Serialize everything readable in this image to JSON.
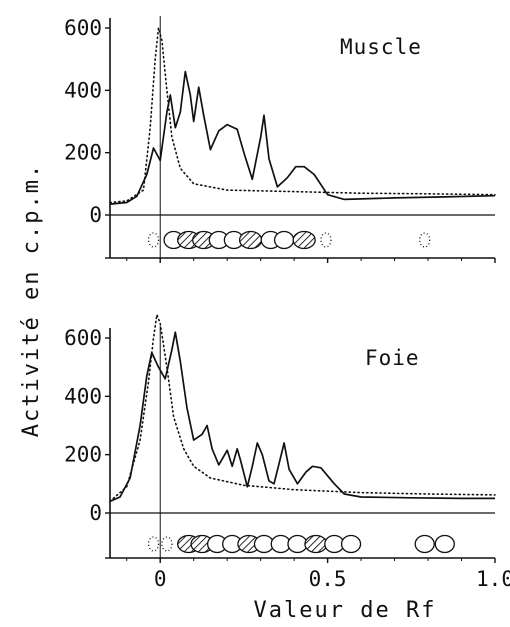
{
  "chart_data": [
    {
      "type": "line",
      "title": "Muscle",
      "ylabel": "Activité en c.p.m.",
      "xlabel": "Valeur de Rf",
      "xlim": [
        -0.15,
        1.0
      ],
      "ylim": [
        0,
        600
      ],
      "x_ticks": [
        0,
        0.5,
        1.0
      ],
      "x_tick_labels": [
        "0",
        "0.5",
        "1.0"
      ],
      "y_ticks": [
        0,
        200,
        400,
        600
      ],
      "y_tick_labels": [
        "0",
        "200",
        "400",
        "600"
      ],
      "series": [
        {
          "style": "solid",
          "points": [
            [
              -0.15,
              35
            ],
            [
              -0.1,
              40
            ],
            [
              -0.07,
              60
            ],
            [
              -0.04,
              130
            ],
            [
              -0.02,
              215
            ],
            [
              0.0,
              175
            ],
            [
              0.02,
              330
            ],
            [
              0.03,
              385
            ],
            [
              0.045,
              280
            ],
            [
              0.06,
              330
            ],
            [
              0.075,
              460
            ],
            [
              0.09,
              385
            ],
            [
              0.1,
              300
            ],
            [
              0.115,
              410
            ],
            [
              0.13,
              320
            ],
            [
              0.15,
              210
            ],
            [
              0.175,
              270
            ],
            [
              0.2,
              290
            ],
            [
              0.23,
              275
            ],
            [
              0.25,
              200
            ],
            [
              0.275,
              115
            ],
            [
              0.3,
              250
            ],
            [
              0.31,
              320
            ],
            [
              0.325,
              180
            ],
            [
              0.35,
              90
            ],
            [
              0.38,
              120
            ],
            [
              0.405,
              155
            ],
            [
              0.43,
              155
            ],
            [
              0.46,
              130
            ],
            [
              0.5,
              65
            ],
            [
              0.55,
              50
            ],
            [
              0.7,
              55
            ],
            [
              0.85,
              58
            ],
            [
              1.0,
              62
            ]
          ]
        },
        {
          "style": "dotted",
          "points": [
            [
              -0.15,
              40
            ],
            [
              -0.1,
              45
            ],
            [
              -0.05,
              80
            ],
            [
              -0.03,
              280
            ],
            [
              -0.015,
              500
            ],
            [
              -0.005,
              600
            ],
            [
              0.005,
              560
            ],
            [
              0.02,
              400
            ],
            [
              0.035,
              250
            ],
            [
              0.06,
              150
            ],
            [
              0.1,
              100
            ],
            [
              0.2,
              80
            ],
            [
              0.4,
              75
            ],
            [
              0.6,
              70
            ],
            [
              0.8,
              68
            ],
            [
              1.0,
              65
            ]
          ]
        }
      ],
      "spots": [
        {
          "rf": -0.02,
          "fill": "dotted"
        },
        {
          "rf": 0.04,
          "fill": "open"
        },
        {
          "rf": 0.085,
          "fill": "hatched"
        },
        {
          "rf": 0.13,
          "fill": "hatched"
        },
        {
          "rf": 0.175,
          "fill": "open"
        },
        {
          "rf": 0.22,
          "fill": "open"
        },
        {
          "rf": 0.27,
          "fill": "hatched"
        },
        {
          "rf": 0.33,
          "fill": "open"
        },
        {
          "rf": 0.37,
          "fill": "open"
        },
        {
          "rf": 0.43,
          "fill": "hatched"
        },
        {
          "rf": 0.495,
          "fill": "dotted"
        },
        {
          "rf": 0.79,
          "fill": "dotted"
        }
      ]
    },
    {
      "type": "line",
      "title": "Foie",
      "xlim": [
        -0.15,
        1.0
      ],
      "ylim": [
        0,
        600
      ],
      "x_ticks": [
        0,
        0.5,
        1.0
      ],
      "x_tick_labels": [
        "0",
        "0.5",
        "1.0"
      ],
      "y_ticks": [
        0,
        200,
        400,
        600
      ],
      "y_tick_labels": [
        "0",
        "200",
        "400",
        "600"
      ],
      "series": [
        {
          "style": "solid",
          "points": [
            [
              -0.15,
              40
            ],
            [
              -0.12,
              55
            ],
            [
              -0.09,
              120
            ],
            [
              -0.06,
              300
            ],
            [
              -0.04,
              470
            ],
            [
              -0.025,
              550
            ],
            [
              -0.005,
              500
            ],
            [
              0.015,
              460
            ],
            [
              0.035,
              560
            ],
            [
              0.045,
              620
            ],
            [
              0.06,
              520
            ],
            [
              0.08,
              360
            ],
            [
              0.1,
              250
            ],
            [
              0.125,
              270
            ],
            [
              0.14,
              300
            ],
            [
              0.155,
              220
            ],
            [
              0.175,
              165
            ],
            [
              0.2,
              215
            ],
            [
              0.215,
              160
            ],
            [
              0.23,
              220
            ],
            [
              0.24,
              180
            ],
            [
              0.26,
              90
            ],
            [
              0.275,
              160
            ],
            [
              0.29,
              240
            ],
            [
              0.305,
              200
            ],
            [
              0.325,
              110
            ],
            [
              0.34,
              100
            ],
            [
              0.355,
              170
            ],
            [
              0.37,
              240
            ],
            [
              0.385,
              150
            ],
            [
              0.41,
              100
            ],
            [
              0.435,
              140
            ],
            [
              0.455,
              160
            ],
            [
              0.48,
              155
            ],
            [
              0.52,
              100
            ],
            [
              0.55,
              65
            ],
            [
              0.6,
              55
            ],
            [
              0.75,
              52
            ],
            [
              0.9,
              50
            ],
            [
              1.0,
              50
            ]
          ]
        },
        {
          "style": "dotted",
          "points": [
            [
              -0.15,
              40
            ],
            [
              -0.1,
              90
            ],
            [
              -0.06,
              250
            ],
            [
              -0.035,
              450
            ],
            [
              -0.02,
              600
            ],
            [
              -0.01,
              680
            ],
            [
              0.0,
              650
            ],
            [
              0.02,
              500
            ],
            [
              0.04,
              330
            ],
            [
              0.07,
              220
            ],
            [
              0.1,
              160
            ],
            [
              0.15,
              120
            ],
            [
              0.25,
              95
            ],
            [
              0.4,
              80
            ],
            [
              0.6,
              70
            ],
            [
              0.8,
              65
            ],
            [
              1.0,
              62
            ]
          ]
        }
      ],
      "spots": [
        {
          "rf": -0.02,
          "fill": "dotted"
        },
        {
          "rf": 0.02,
          "fill": "dotted"
        },
        {
          "rf": 0.085,
          "fill": "hatched"
        },
        {
          "rf": 0.125,
          "fill": "hatched"
        },
        {
          "rf": 0.17,
          "fill": "open"
        },
        {
          "rf": 0.215,
          "fill": "open"
        },
        {
          "rf": 0.265,
          "fill": "hatched"
        },
        {
          "rf": 0.31,
          "fill": "open"
        },
        {
          "rf": 0.36,
          "fill": "open"
        },
        {
          "rf": 0.41,
          "fill": "open"
        },
        {
          "rf": 0.465,
          "fill": "hatched"
        },
        {
          "rf": 0.52,
          "fill": "open"
        },
        {
          "rf": 0.57,
          "fill": "open"
        },
        {
          "rf": 0.79,
          "fill": "open"
        },
        {
          "rf": 0.85,
          "fill": "open"
        }
      ]
    }
  ]
}
